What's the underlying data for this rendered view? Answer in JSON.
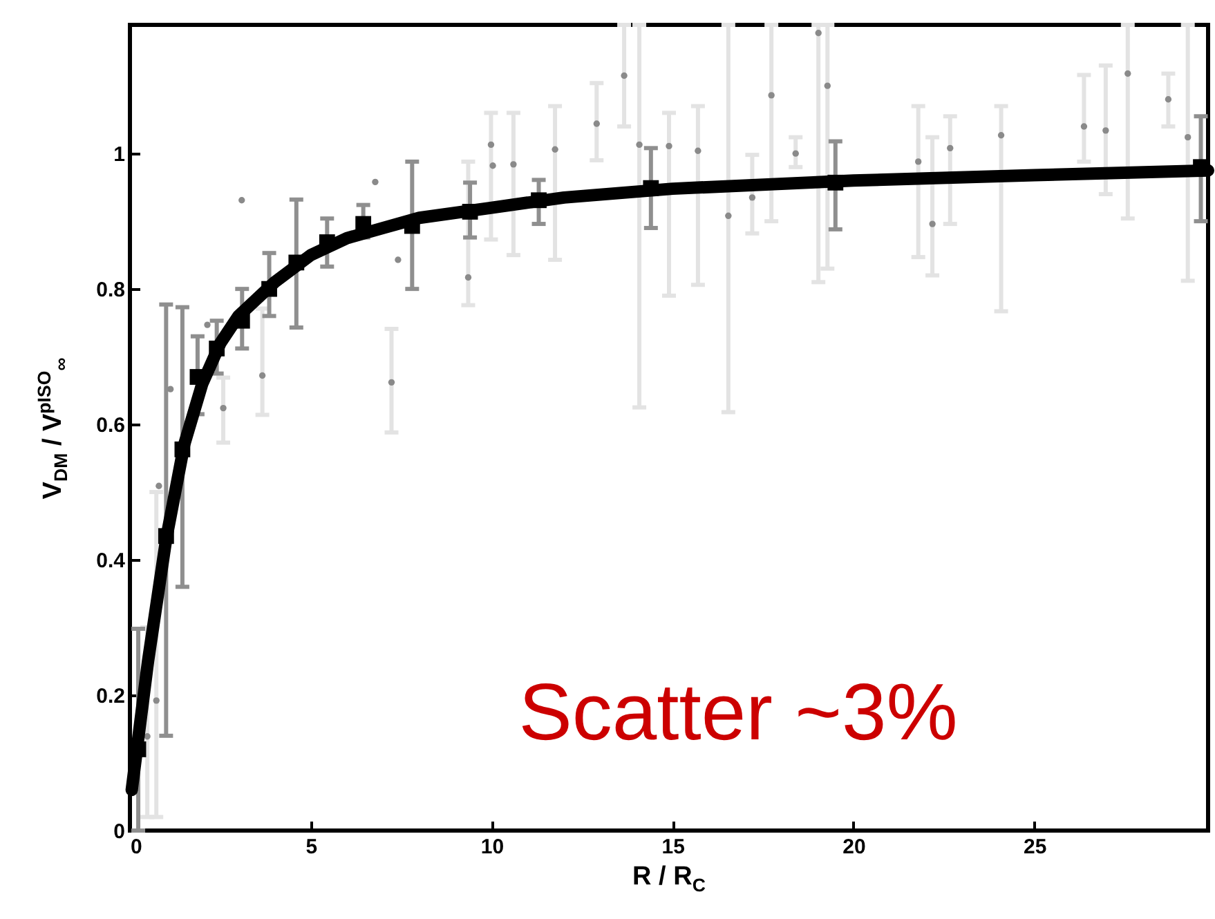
{
  "chart_data": {
    "type": "scatter",
    "xlabel": "R / R$_{C}$",
    "ylabel": "V$_{DM}$ / V$^{pISO}$$_{∞}$",
    "annotations": [
      "Scatter ~3%"
    ],
    "xlim": [
      0,
      29.8
    ],
    "ylim": [
      0,
      1.19
    ],
    "xticks": [
      0,
      5,
      10,
      15,
      20,
      25
    ],
    "yticks": [
      0,
      0.2,
      0.4,
      0.6,
      0.8,
      1
    ],
    "grid": false,
    "series": [
      {
        "marker": "circle",
        "color": "#8a8a8a",
        "x": [
          13.66,
          14.08,
          16.54,
          17.73,
          19.03,
          19.28,
          24.08,
          26.37,
          26.97,
          27.58,
          28.7,
          29.24,
          22.67,
          22.18,
          21.79,
          18.4,
          15.7,
          14.9,
          17.2,
          12.9,
          9.98,
          10.6,
          11.75,
          9.35,
          7.23,
          3.09,
          0.48,
          0.73,
          3.66,
          2.58,
          7.41,
          6.78,
          2.14,
          1.12,
          0.8,
          10.03
        ],
        "values": [
          1.115,
          1.013,
          0.908,
          1.086,
          1.178,
          1.1,
          1.027,
          1.04,
          1.034,
          1.118,
          1.08,
          1.024,
          1.008,
          0.896,
          0.988,
          1.0,
          1.004,
          1.011,
          0.935,
          1.044,
          1.013,
          0.984,
          1.006,
          0.817,
          0.662,
          0.931,
          0.139,
          0.192,
          0.672,
          0.624,
          0.843,
          0.958,
          0.747,
          0.652,
          0.509,
          0.982
        ],
        "errors": [
          [
            1.04,
            1.19
          ],
          [
            0.625,
            1.19
          ],
          [
            0.618,
            1.19
          ],
          [
            0.9,
            1.19
          ],
          [
            0.81,
            1.19
          ],
          [
            0.83,
            1.19
          ],
          [
            0.767,
            1.07
          ],
          [
            0.988,
            1.116
          ],
          [
            0.94,
            1.13
          ],
          [
            0.904,
            1.19
          ],
          [
            1.04,
            1.118
          ],
          [
            0.812,
            1.19
          ],
          [
            0.896,
            1.055
          ],
          [
            0.82,
            1.024
          ],
          [
            0.847,
            1.07
          ],
          [
            0.98,
            1.024
          ],
          [
            0.806,
            1.07
          ],
          [
            0.79,
            1.06
          ],
          [
            0.882,
            0.998
          ],
          [
            0.99,
            1.104
          ],
          [
            0.873,
            1.06
          ],
          [
            0.85,
            1.06
          ],
          [
            0.843,
            1.07
          ],
          [
            0.776,
            0.988
          ],
          [
            0.588,
            0.741
          ],
          null,
          [
            0.02,
            0.3
          ],
          [
            0.02,
            0.5
          ],
          [
            0.614,
            0.771
          ],
          [
            0.573,
            0.669
          ],
          null,
          null,
          null,
          null,
          null,
          null
        ]
      },
      {
        "type": "line",
        "color": "#000000",
        "x": [
          0.05,
          0.5,
          1,
          1.5,
          2,
          2.5,
          3,
          4,
          5,
          6,
          7,
          8,
          10,
          12,
          15,
          20,
          25,
          29.8
        ],
        "values": [
          0.06,
          0.25,
          0.43,
          0.57,
          0.66,
          0.72,
          0.76,
          0.81,
          0.85,
          0.875,
          0.89,
          0.905,
          0.92,
          0.935,
          0.948,
          0.96,
          0.968,
          0.975
        ]
      },
      {
        "marker": "square",
        "color": "#000000",
        "x": [
          0.23,
          1.0,
          1.45,
          1.87,
          2.4,
          3.1,
          3.85,
          4.6,
          5.45,
          6.45,
          7.8,
          9.4,
          11.3,
          14.4,
          19.5,
          29.6
        ],
        "values": [
          0.12,
          0.435,
          0.563,
          0.67,
          0.712,
          0.753,
          0.8,
          0.839,
          0.869,
          0.896,
          0.893,
          0.914,
          0.931,
          0.949,
          0.957,
          0.98
        ],
        "errors": [
          [
            0.0,
            0.298
          ],
          [
            0.14,
            0.777
          ],
          [
            0.36,
            0.773
          ],
          [
            0.615,
            0.73
          ],
          [
            0.675,
            0.753
          ],
          [
            0.712,
            0.8
          ],
          [
            0.76,
            0.853
          ],
          [
            0.743,
            0.932
          ],
          [
            0.833,
            0.904
          ],
          [
            0.876,
            0.924
          ],
          [
            0.8,
            0.988
          ],
          [
            0.876,
            0.957
          ],
          [
            0.896,
            0.961
          ],
          [
            0.89,
            1.008
          ],
          [
            0.888,
            1.018
          ],
          [
            0.9,
            1.055
          ]
        ]
      }
    ]
  }
}
